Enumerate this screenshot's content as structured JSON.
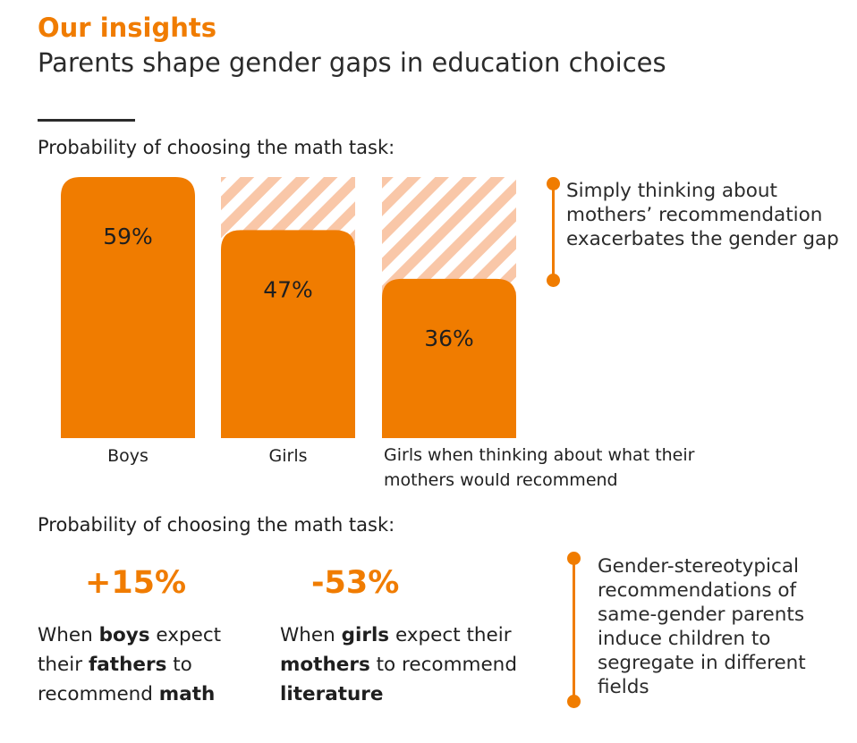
{
  "header": {
    "eyebrow": "Our insights",
    "headline": "Parents shape gender gaps in education choices"
  },
  "section1": {
    "label": "Probability of choosing the math task:"
  },
  "chart_data": {
    "type": "bar",
    "categories": [
      "Boys",
      "Girls",
      "Girls when thinking about what their mothers would recommend"
    ],
    "values": [
      59,
      47,
      36
    ],
    "data_labels": [
      "59%",
      "47%",
      "36%"
    ],
    "ylim": [
      0,
      59
    ],
    "bar_color": "#f07c00",
    "gap_pattern_color": "#f9c7a8",
    "gap_reference_value": 59
  },
  "callout1": {
    "text": "Simply thinking about mothers’ recommendation exacerbates the gender gap"
  },
  "section2": {
    "label": "Probability of choosing the math task:",
    "stats": [
      {
        "value": "+15%",
        "desc_parts": [
          {
            "text": "When ",
            "bold": false
          },
          {
            "text": "boys",
            "bold": true
          },
          {
            "text": " expect their ",
            "bold": false
          },
          {
            "text": "fathers",
            "bold": true
          },
          {
            "text": " to recommend ",
            "bold": false
          },
          {
            "text": "math",
            "bold": true
          }
        ]
      },
      {
        "value": "-53%",
        "desc_parts": [
          {
            "text": "When ",
            "bold": false
          },
          {
            "text": "girls",
            "bold": true
          },
          {
            "text": " expect their ",
            "bold": false
          },
          {
            "text": "mothers",
            "bold": true
          },
          {
            "text": " to recommend ",
            "bold": false
          },
          {
            "text": "literature",
            "bold": true
          }
        ]
      }
    ]
  },
  "callout2": {
    "text": "Gender-stereotypical recommendations of same-gender parents induce children to segregate in different fields"
  },
  "colors": {
    "accent": "#f07c00",
    "text": "#1f1f1f"
  }
}
